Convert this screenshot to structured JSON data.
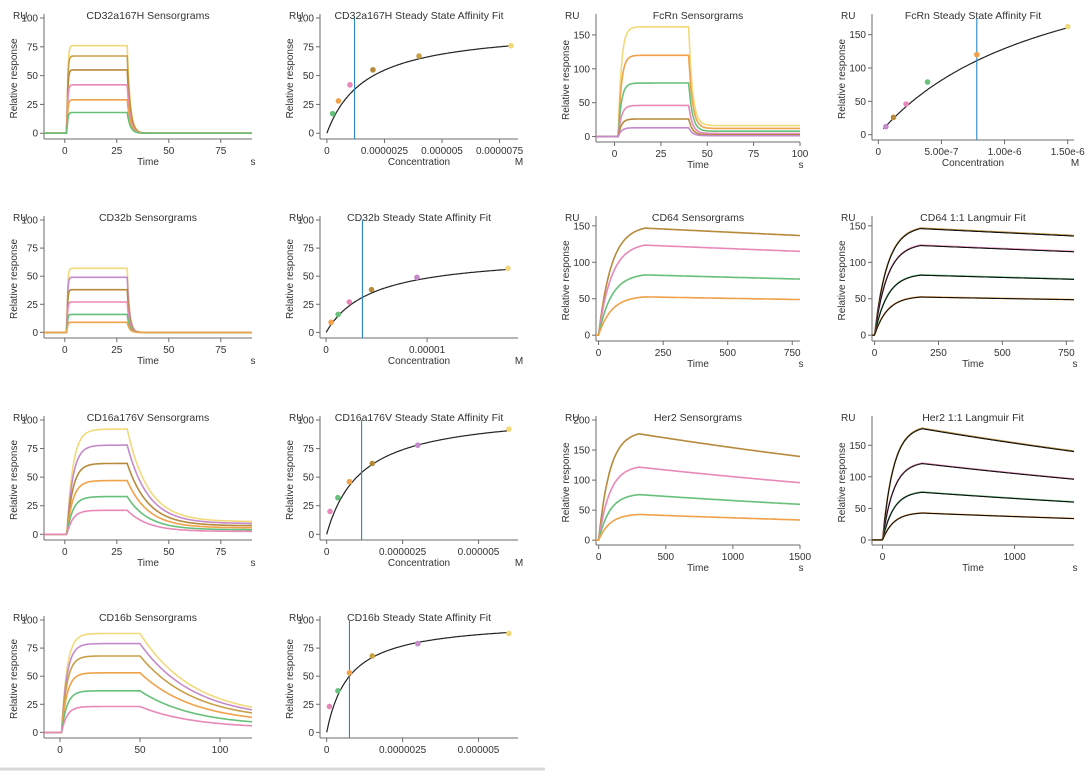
{
  "unit_label": "RU",
  "chart_data": [
    {
      "id": "cd32a_sens",
      "type": "line",
      "kind": "sensorgram",
      "title": "CD32a167H Sensorgrams",
      "xlabel": "Time",
      "xunit": "s",
      "ylabel": "Relative response",
      "xlim": [
        -10,
        90
      ],
      "ylim": [
        -5,
        100
      ],
      "xticks": [
        0,
        25,
        50,
        75
      ],
      "xtick_labels": [
        "0",
        "25",
        "50",
        "75"
      ],
      "yticks": [
        0,
        25,
        50,
        75,
        100
      ],
      "ytick_labels": [
        "0",
        "25",
        "50",
        "75",
        "100"
      ],
      "params": {
        "t0": 1,
        "t1": 30,
        "ka": 2.5,
        "kd": 0.7,
        "tail": 0
      },
      "series": [
        {
          "name": "s1",
          "color": "#f2d97a",
          "Req": 76
        },
        {
          "name": "s2",
          "color": "#c9a047",
          "Req": 67
        },
        {
          "name": "s3",
          "color": "#b58a3a",
          "Req": 55
        },
        {
          "name": "s4",
          "color": "#e888b8",
          "Req": 42
        },
        {
          "name": "s5",
          "color": "#f0a14a",
          "Req": 29
        },
        {
          "name": "s6",
          "color": "#66c07a",
          "Req": 18
        }
      ]
    },
    {
      "id": "cd32a_fit",
      "type": "scatter",
      "kind": "affinity",
      "title": "CD32a167H Steady State Affinity Fit",
      "xlabel": "Concentration",
      "xunit": "M",
      "ylabel": "Relative response",
      "xlim": [
        -3e-07,
        8.3e-06
      ],
      "ylim": [
        -5,
        100
      ],
      "xticks": [
        0,
        2.5e-06,
        5e-06,
        7.5e-06
      ],
      "xtick_labels": [
        "0",
        "0.0000025",
        "0.000005",
        "0.0000075"
      ],
      "yticks": [
        0,
        25,
        50,
        75,
        100
      ],
      "ytick_labels": [
        "0",
        "25",
        "50",
        "75",
        "100"
      ],
      "params": {
        "Rmax": 92,
        "Kd": 1.7e-06,
        "off": 0,
        "fitFrom": 0
      },
      "vline": 1.2e-06,
      "points": [
        {
          "x": 2.5e-07,
          "y": 17,
          "color": "#66c07a"
        },
        {
          "x": 5e-07,
          "y": 28,
          "color": "#f0a14a"
        },
        {
          "x": 1e-06,
          "y": 42,
          "color": "#e888b8"
        },
        {
          "x": 2e-06,
          "y": 55,
          "color": "#b58a3a"
        },
        {
          "x": 4e-06,
          "y": 67,
          "color": "#c9a047"
        },
        {
          "x": 8e-06,
          "y": 76,
          "color": "#f2d97a"
        }
      ]
    },
    {
      "id": "fcrn_sens",
      "type": "line",
      "kind": "sensorgram",
      "title": "FcRn Sensorgrams",
      "xlabel": "Time",
      "xunit": "s",
      "ylabel": "Relative response",
      "xlim": [
        -10,
        100
      ],
      "ylim": [
        -8,
        175
      ],
      "xticks": [
        0,
        25,
        50,
        75,
        100
      ],
      "xtick_labels": [
        "0",
        "25",
        "50",
        "75",
        "100"
      ],
      "yticks": [
        0,
        50,
        100,
        150
      ],
      "ytick_labels": [
        "0",
        "50",
        "100",
        "150"
      ],
      "params": {
        "t0": 2,
        "t1": 40,
        "ka": 0.6,
        "kd": 0.5,
        "tail": 0.1
      },
      "series": [
        {
          "name": "s1",
          "color": "#f2d97a",
          "Req": 162
        },
        {
          "name": "s2",
          "color": "#f0a14a",
          "Req": 120
        },
        {
          "name": "s3",
          "color": "#66c07a",
          "Req": 79
        },
        {
          "name": "s4",
          "color": "#e888b8",
          "Req": 46
        },
        {
          "name": "s5",
          "color": "#b58a3a",
          "Req": 26
        },
        {
          "name": "s6",
          "color": "#c58acb",
          "Req": 13
        }
      ]
    },
    {
      "id": "fcrn_fit",
      "type": "scatter",
      "kind": "affinity",
      "title": "FcRn Steady State Affinity Fit",
      "xlabel": "Concentration",
      "xunit": "M",
      "ylabel": "Relative response",
      "xlim": [
        -5e-08,
        1.55e-06
      ],
      "ylim": [
        -8,
        175
      ],
      "xticks": [
        0,
        5e-07,
        1e-06,
        1.5e-06
      ],
      "xtick_labels": [
        "0",
        "5.00e-7",
        "1.00e-6",
        "1.50e-6"
      ],
      "yticks": [
        0,
        50,
        100,
        150
      ],
      "ytick_labels": [
        "0",
        "50",
        "100",
        "150"
      ],
      "params": {
        "Rmax": 310,
        "Kd": 1.4e-06,
        "off": 0,
        "fitFrom": 4e-08
      },
      "vline": 7.8e-07,
      "points": [
        {
          "x": 6e-08,
          "y": 12,
          "color": "#c58acb"
        },
        {
          "x": 1.2e-07,
          "y": 26,
          "color": "#b58a3a"
        },
        {
          "x": 2.2e-07,
          "y": 46,
          "color": "#e888b8"
        },
        {
          "x": 3.9e-07,
          "y": 79,
          "color": "#66c07a"
        },
        {
          "x": 7.8e-07,
          "y": 120,
          "color": "#f0a14a"
        },
        {
          "x": 1.5e-06,
          "y": 162,
          "color": "#f2d97a"
        }
      ]
    },
    {
      "id": "cd32b_sens",
      "type": "line",
      "kind": "sensorgram",
      "title": "CD32b Sensorgrams",
      "xlabel": "Time",
      "xunit": "s",
      "ylabel": "Relative response",
      "xlim": [
        -10,
        90
      ],
      "ylim": [
        -5,
        100
      ],
      "xticks": [
        0,
        25,
        50,
        75
      ],
      "xtick_labels": [
        "0",
        "25",
        "50",
        "75"
      ],
      "yticks": [
        0,
        25,
        50,
        75,
        100
      ],
      "ytick_labels": [
        "0",
        "25",
        "50",
        "75",
        "100"
      ],
      "params": {
        "t0": 1,
        "t1": 30,
        "ka": 3,
        "kd": 0.9,
        "tail": 0
      },
      "series": [
        {
          "name": "s1",
          "color": "#f2d97a",
          "Req": 57
        },
        {
          "name": "s2",
          "color": "#c58acb",
          "Req": 49
        },
        {
          "name": "s3",
          "color": "#b58a3a",
          "Req": 38
        },
        {
          "name": "s4",
          "color": "#e888b8",
          "Req": 27
        },
        {
          "name": "s5",
          "color": "#66c07a",
          "Req": 16
        },
        {
          "name": "s6",
          "color": "#f0a14a",
          "Req": 9
        }
      ]
    },
    {
      "id": "cd32b_fit",
      "type": "scatter",
      "kind": "affinity",
      "title": "CD32b Steady State Affinity Fit",
      "xlabel": "Concentration",
      "xunit": "M",
      "ylabel": "Relative response",
      "xlim": [
        -6e-07,
        1.9e-05
      ],
      "ylim": [
        -5,
        100
      ],
      "xticks": [
        0,
        1e-05
      ],
      "xtick_labels": [
        "0",
        "0.00001"
      ],
      "yticks": [
        0,
        25,
        50,
        75,
        100
      ],
      "ytick_labels": [
        "0",
        "25",
        "50",
        "75",
        "100"
      ],
      "params": {
        "Rmax": 70,
        "Kd": 4.5e-06,
        "off": 0,
        "fitFrom": 0
      },
      "vline": 3.6e-06,
      "points": [
        {
          "x": 5e-07,
          "y": 9,
          "color": "#f0a14a"
        },
        {
          "x": 1.2e-06,
          "y": 16,
          "color": "#66c07a"
        },
        {
          "x": 2.3e-06,
          "y": 27,
          "color": "#e888b8"
        },
        {
          "x": 4.5e-06,
          "y": 38,
          "color": "#b58a3a"
        },
        {
          "x": 9e-06,
          "y": 49,
          "color": "#c58acb"
        },
        {
          "x": 1.8e-05,
          "y": 57,
          "color": "#f2d97a"
        }
      ]
    },
    {
      "id": "cd64_sens",
      "type": "line",
      "kind": "sensorgram",
      "title": "CD64 Sensorgrams",
      "xlabel": "Time",
      "xunit": "s",
      "ylabel": "Relative response",
      "xlim": [
        -10,
        780
      ],
      "ylim": [
        -8,
        158
      ],
      "xticks": [
        0,
        250,
        500,
        750
      ],
      "xtick_labels": [
        "0",
        "250",
        "500",
        "750"
      ],
      "yticks": [
        0,
        50,
        100,
        150
      ],
      "ytick_labels": [
        "0",
        "50",
        "100",
        "150"
      ],
      "params": {
        "t0": 0,
        "t1": 180,
        "ka": 0.02,
        "kd": 0.00012,
        "tail": 0
      },
      "series": [
        {
          "name": "s1",
          "color": "#b58a3a",
          "Req": 151
        },
        {
          "name": "s2",
          "color": "#e888b8",
          "Req": 127
        },
        {
          "name": "s3",
          "color": "#66c07a",
          "Req": 85
        },
        {
          "name": "s4",
          "color": "#f0a14a",
          "Req": 54
        }
      ]
    },
    {
      "id": "cd64_fit",
      "type": "line",
      "kind": "langmuir",
      "title": "CD64 1:1 Langmuir Fit",
      "xlabel": "Time",
      "xunit": "s",
      "ylabel": "Relative response",
      "xlim": [
        -10,
        780
      ],
      "ylim": [
        -8,
        158
      ],
      "xticks": [
        0,
        250,
        500,
        750
      ],
      "xtick_labels": [
        "0",
        "250",
        "500",
        "750"
      ],
      "yticks": [
        0,
        50,
        100,
        150
      ],
      "ytick_labels": [
        "0",
        "50",
        "100",
        "150"
      ],
      "params": {
        "t0": 0,
        "t1": 180,
        "ka": 0.02,
        "kd": 0.00012,
        "tail": 0
      },
      "series": [
        {
          "name": "s1",
          "color": "#b58a3a",
          "Req": 151
        },
        {
          "name": "s2",
          "color": "#e888b8",
          "Req": 127
        },
        {
          "name": "s3",
          "color": "#66c07a",
          "Req": 85
        },
        {
          "name": "s4",
          "color": "#f0a14a",
          "Req": 54
        }
      ]
    },
    {
      "id": "cd16a_sens",
      "type": "line",
      "kind": "sensorgram",
      "title": "CD16a176V Sensorgrams",
      "xlabel": "Time",
      "xunit": "s",
      "ylabel": "Relative response",
      "xlim": [
        -10,
        90
      ],
      "ylim": [
        -5,
        100
      ],
      "xticks": [
        0,
        25,
        50,
        75
      ],
      "xtick_labels": [
        "0",
        "25",
        "50",
        "75"
      ],
      "yticks": [
        0,
        25,
        50,
        75,
        100
      ],
      "ytick_labels": [
        "0",
        "25",
        "50",
        "75",
        "100"
      ],
      "params": {
        "t0": 1,
        "t1": 30,
        "ka": 0.35,
        "kd": 0.1,
        "tail": 0.12
      },
      "series": [
        {
          "name": "s1",
          "color": "#f2d97a",
          "Req": 92
        },
        {
          "name": "s2",
          "color": "#c58acb",
          "Req": 78
        },
        {
          "name": "s3",
          "color": "#b58a3a",
          "Req": 62
        },
        {
          "name": "s4",
          "color": "#f0a14a",
          "Req": 47
        },
        {
          "name": "s5",
          "color": "#66c07a",
          "Req": 33
        },
        {
          "name": "s6",
          "color": "#e888b8",
          "Req": 21
        }
      ]
    },
    {
      "id": "cd16a_fit",
      "type": "scatter",
      "kind": "affinity",
      "title": "CD16a176V Steady State Affinity Fit",
      "xlabel": "Concentration",
      "xunit": "M",
      "ylabel": "Relative response",
      "xlim": [
        -2.2e-07,
        6.3e-06
      ],
      "ylim": [
        -5,
        100
      ],
      "xticks": [
        0,
        2.5e-06,
        5e-06
      ],
      "xtick_labels": [
        "0",
        "0.0000025",
        "0.000005"
      ],
      "yticks": [
        0,
        25,
        50,
        75,
        100
      ],
      "ytick_labels": [
        "0",
        "25",
        "50",
        "75",
        "100"
      ],
      "params": {
        "Rmax": 108,
        "Kd": 1.15e-06,
        "off": 0,
        "fitFrom": 0
      },
      "vline": 1.15e-06,
      "points": [
        {
          "x": 1.1e-07,
          "y": 20,
          "color": "#e888b8"
        },
        {
          "x": 3.7e-07,
          "y": 32,
          "color": "#66c07a"
        },
        {
          "x": 7.5e-07,
          "y": 46,
          "color": "#f0a14a"
        },
        {
          "x": 1.5e-06,
          "y": 62,
          "color": "#b58a3a"
        },
        {
          "x": 3e-06,
          "y": 78,
          "color": "#c58acb"
        },
        {
          "x": 6e-06,
          "y": 92,
          "color": "#f2d97a"
        }
      ]
    },
    {
      "id": "her2_sens",
      "type": "line",
      "kind": "sensorgram",
      "title": "Her2 Sensorgrams",
      "xlabel": "Time",
      "xunit": "s",
      "ylabel": "Relative response",
      "xlim": [
        -20,
        1500
      ],
      "ylim": [
        -8,
        200
      ],
      "xticks": [
        0,
        500,
        1000,
        1500
      ],
      "xtick_labels": [
        "0",
        "500",
        "1000",
        "1500"
      ],
      "yticks": [
        0,
        50,
        100,
        150,
        200
      ],
      "ytick_labels": [
        "0",
        "50",
        "100",
        "150",
        "200"
      ],
      "params": {
        "t0": 0,
        "t1": 300,
        "ka": 0.012,
        "kd": 0.0002,
        "tail": 0
      },
      "series": [
        {
          "name": "s1",
          "color": "#b58a3a",
          "Req": 182
        },
        {
          "name": "s2",
          "color": "#e888b8",
          "Req": 125
        },
        {
          "name": "s3",
          "color": "#66c07a",
          "Req": 78
        },
        {
          "name": "s4",
          "color": "#f0a14a",
          "Req": 44
        }
      ]
    },
    {
      "id": "her2_fit",
      "type": "line",
      "kind": "langmuir",
      "title": "Her2 1:1 Langmuir Fit",
      "xlabel": "Time",
      "xunit": "s",
      "ylabel": "Relative response",
      "xlim": [
        -80,
        1450
      ],
      "ylim": [
        -8,
        190
      ],
      "xticks": [
        0,
        1000
      ],
      "xtick_labels": [
        "0",
        "1000"
      ],
      "yticks": [
        0,
        50,
        100,
        150
      ],
      "ytick_labels": [
        "0",
        "50",
        "100",
        "150"
      ],
      "params": {
        "t0": 0,
        "t1": 300,
        "ka": 0.012,
        "kd": 0.0002,
        "tail": 0
      },
      "series": [
        {
          "name": "s1",
          "color": "#b58a3a",
          "Req": 182
        },
        {
          "name": "s2",
          "color": "#e888b8",
          "Req": 125
        },
        {
          "name": "s3",
          "color": "#66c07a",
          "Req": 78
        },
        {
          "name": "s4",
          "color": "#f0a14a",
          "Req": 44
        }
      ]
    },
    {
      "id": "cd16b_sens",
      "type": "line",
      "kind": "sensorgram",
      "title": "CD16b Sensorgrams",
      "xlabel": "",
      "xunit": "",
      "ylabel": "Relative response",
      "xlim": [
        -10,
        120
      ],
      "ylim": [
        -5,
        100
      ],
      "xticks": [
        0,
        50,
        100
      ],
      "xtick_labels": [
        "0",
        "50",
        "100"
      ],
      "yticks": [
        0,
        25,
        50,
        75,
        100
      ],
      "ytick_labels": [
        "0",
        "25",
        "50",
        "75",
        "100"
      ],
      "params": {
        "t0": 1,
        "t1": 50,
        "ka": 0.3,
        "kd": 0.03,
        "tail": 0.15
      },
      "series": [
        {
          "name": "s1",
          "color": "#f2d97a",
          "Req": 88
        },
        {
          "name": "s2",
          "color": "#c58acb",
          "Req": 79
        },
        {
          "name": "s3",
          "color": "#c9a047",
          "Req": 68
        },
        {
          "name": "s4",
          "color": "#f0a14a",
          "Req": 53
        },
        {
          "name": "s5",
          "color": "#66c07a",
          "Req": 37
        },
        {
          "name": "s6",
          "color": "#e888b8",
          "Req": 23
        }
      ]
    },
    {
      "id": "cd16b_fit",
      "type": "scatter",
      "kind": "affinity",
      "title": "CD16b Steady State Affinity Fit",
      "xlabel": "",
      "xunit": "",
      "ylabel": "Relative response",
      "xlim": [
        -2.2e-07,
        6.3e-06
      ],
      "ylim": [
        -5,
        100
      ],
      "xticks": [
        0,
        2.5e-06,
        5e-06
      ],
      "xtick_labels": [
        "0",
        "0.0000025",
        "0.000005"
      ],
      "yticks": [
        0,
        25,
        50,
        75,
        100
      ],
      "ytick_labels": [
        "0",
        "25",
        "50",
        "75",
        "100"
      ],
      "params": {
        "Rmax": 100,
        "Kd": 7.5e-07,
        "off": 0,
        "fitFrom": 0
      },
      "vline": 7.5e-07,
      "points": [
        {
          "x": 9e-08,
          "y": 23,
          "color": "#e888b8"
        },
        {
          "x": 3.7e-07,
          "y": 37,
          "color": "#66c07a"
        },
        {
          "x": 7.5e-07,
          "y": 53,
          "color": "#f0a14a"
        },
        {
          "x": 1.5e-06,
          "y": 68,
          "color": "#c9a047"
        },
        {
          "x": 3e-06,
          "y": 79,
          "color": "#c58acb"
        },
        {
          "x": 6e-06,
          "y": 88,
          "color": "#f2d97a"
        }
      ]
    }
  ]
}
